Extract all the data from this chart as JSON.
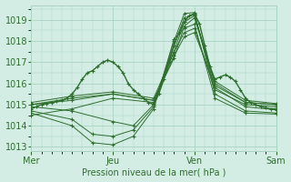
{
  "bg_color": "#d4ede4",
  "grid_color": "#a8d4c4",
  "line_color": "#2d6e2d",
  "marker_color": "#2d6e2d",
  "xlabel": "Pression niveau de la mer( hPa )",
  "xlabel_color": "#2d6e2d",
  "tick_color": "#2d6e2d",
  "ylim": [
    1012.8,
    1019.7
  ],
  "yticks": [
    1013,
    1014,
    1015,
    1016,
    1017,
    1018,
    1019
  ],
  "xlim": [
    0,
    96
  ],
  "xtick_positions": [
    0,
    32,
    64,
    96
  ],
  "xtick_labels": [
    "Mer",
    "Jeu",
    "Ven",
    "Sam"
  ],
  "lines": [
    [
      0,
      1014.8,
      2,
      1014.9,
      4,
      1015.0,
      6,
      1015.05,
      8,
      1015.1,
      10,
      1015.15,
      12,
      1015.2,
      14,
      1015.3,
      16,
      1015.5,
      18,
      1015.8,
      20,
      1016.2,
      22,
      1016.5,
      24,
      1016.6,
      26,
      1016.8,
      28,
      1017.0,
      30,
      1017.1,
      32,
      1017.0,
      34,
      1016.8,
      36,
      1016.5,
      38,
      1016.0,
      40,
      1015.7,
      42,
      1015.5,
      44,
      1015.3,
      46,
      1015.1,
      48,
      1015.0,
      50,
      1015.5,
      52,
      1016.2,
      54,
      1017.0,
      56,
      1017.8,
      58,
      1018.4,
      60,
      1018.9,
      62,
      1019.2,
      64,
      1019.3,
      66,
      1018.8,
      68,
      1017.8,
      70,
      1016.8,
      72,
      1016.2,
      74,
      1016.3,
      76,
      1016.4,
      78,
      1016.3,
      80,
      1016.1,
      82,
      1015.7,
      84,
      1015.3,
      86,
      1015.1,
      88,
      1015.0,
      90,
      1014.9,
      92,
      1014.85,
      94,
      1014.8,
      96,
      1014.8
    ],
    [
      0,
      1015.0,
      16,
      1015.3,
      32,
      1015.5,
      48,
      1015.2,
      56,
      1017.2,
      60,
      1018.7,
      64,
      1019.1,
      72,
      1016.0,
      84,
      1015.1,
      96,
      1015.0
    ],
    [
      0,
      1015.1,
      16,
      1015.4,
      32,
      1015.6,
      48,
      1015.3,
      56,
      1017.5,
      60,
      1018.9,
      64,
      1019.2,
      72,
      1016.1,
      84,
      1015.2,
      96,
      1015.05
    ],
    [
      0,
      1014.9,
      16,
      1014.7,
      32,
      1014.2,
      40,
      1014.0,
      48,
      1015.0,
      56,
      1017.8,
      60,
      1019.1,
      64,
      1019.25,
      72,
      1015.8,
      84,
      1014.9,
      96,
      1014.75
    ],
    [
      0,
      1014.7,
      16,
      1014.3,
      24,
      1013.6,
      32,
      1013.5,
      40,
      1013.8,
      48,
      1014.9,
      56,
      1018.0,
      60,
      1019.3,
      64,
      1019.35,
      72,
      1015.5,
      84,
      1014.7,
      96,
      1014.6
    ],
    [
      0,
      1014.6,
      16,
      1014.0,
      24,
      1013.2,
      32,
      1013.1,
      40,
      1013.5,
      48,
      1014.8,
      56,
      1018.1,
      60,
      1018.6,
      64,
      1018.8,
      72,
      1015.3,
      84,
      1014.6,
      96,
      1014.55
    ],
    [
      0,
      1014.5,
      16,
      1014.8,
      32,
      1015.3,
      48,
      1015.1,
      56,
      1017.5,
      60,
      1018.4,
      64,
      1018.6,
      72,
      1015.7,
      84,
      1015.0,
      96,
      1014.9
    ],
    [
      0,
      1015.0,
      16,
      1015.2,
      32,
      1015.5,
      48,
      1015.2,
      56,
      1017.3,
      60,
      1018.2,
      64,
      1018.4,
      72,
      1015.9,
      84,
      1015.1,
      96,
      1015.0
    ]
  ]
}
